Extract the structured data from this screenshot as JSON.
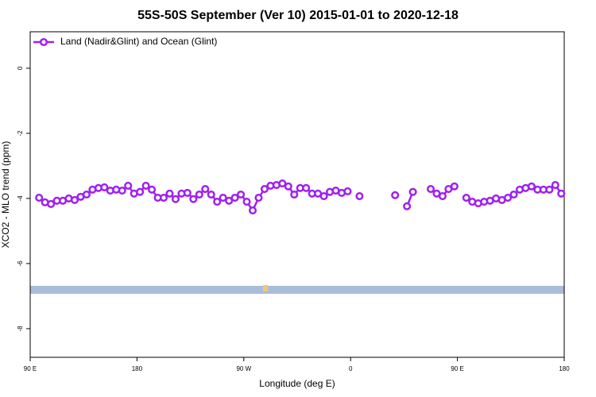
{
  "chart_data": {
    "type": "line",
    "title": "55S-50S September (Ver 10)   2015-01-01 to 2020-12-18",
    "x_label": "Longitude (deg E)",
    "y_label": "XCO2 - MLO trend (ppm)",
    "x": [
      97.5,
      102.5,
      107.5,
      112.5,
      117.5,
      122.5,
      127.5,
      132.5,
      137.5,
      142.5,
      147.5,
      152.5,
      157.5,
      162.5,
      167.5,
      172.5,
      177.5,
      182.5,
      187.5,
      192.5,
      197.5,
      202.5,
      207.5,
      212.5,
      217.5,
      222.5,
      227.5,
      232.5,
      237.5,
      242.5,
      247.5,
      252.5,
      257.5,
      262.5,
      267.5,
      272.5,
      277.5,
      282.5,
      287.5,
      292.5,
      297.5,
      302.5,
      307.5,
      312.5,
      317.5,
      322.5,
      327.5,
      332.5,
      337.5,
      342.5,
      347.5,
      352.5,
      357.5,
      362.5,
      367.5,
      372.5,
      377.5,
      382.5,
      387.5,
      392.5,
      397.5,
      402.5,
      407.5,
      412.5,
      417.5,
      422.5,
      427.5,
      432.5,
      437.5,
      442.5,
      447.5,
      452.5,
      457.5,
      462.5,
      467.5,
      472.5,
      477.5,
      482.5,
      487.5,
      492.5,
      497.5,
      502.5,
      507.5,
      512.5,
      517.5,
      522.5,
      527.5,
      532.5,
      537.5
    ],
    "series": [
      {
        "name": "Land (Nadir&Glint) and Ocean (Glint)",
        "color": "#a020f0",
        "values": [
          -3.98,
          -4.12,
          -4.17,
          -4.07,
          -4.07,
          -4.0,
          -4.05,
          -3.95,
          -3.88,
          -3.73,
          -3.68,
          -3.66,
          -3.76,
          -3.73,
          -3.76,
          -3.61,
          -3.85,
          -3.8,
          -3.61,
          -3.73,
          -3.98,
          -3.98,
          -3.85,
          -4.02,
          -3.85,
          -3.83,
          -4.02,
          -3.88,
          -3.71,
          -3.88,
          -4.1,
          -3.98,
          -4.07,
          -3.98,
          -3.88,
          -4.1,
          -4.37,
          -3.98,
          -3.71,
          -3.61,
          -3.59,
          -3.54,
          -3.63,
          -3.88,
          -3.68,
          -3.68,
          -3.85,
          -3.85,
          -3.93,
          -3.8,
          -3.76,
          -3.83,
          -3.78,
          null,
          -3.93,
          null,
          null,
          null,
          null,
          null,
          -3.9,
          null,
          -4.24,
          -3.8,
          null,
          null,
          -3.71,
          -3.85,
          -3.93,
          -3.71,
          -3.63,
          null,
          -3.98,
          -4.1,
          -4.15,
          -4.1,
          -4.07,
          -4.0,
          -4.05,
          -3.98,
          -3.88,
          -3.73,
          -3.68,
          -3.63,
          -3.73,
          -3.73,
          -3.73,
          -3.59,
          -3.85
        ]
      }
    ],
    "xlim": [
      90,
      540
    ],
    "xticks": [
      {
        "value": 90,
        "label": "90 E"
      },
      180,
      {
        "value": 270,
        "label": "90 W"
      },
      {
        "value": 360,
        "label": "0"
      },
      {
        "value": 450,
        "label": "90 E"
      },
      180
    ],
    "ylim": [
      -8.88,
      1.12
    ],
    "yticks": [
      0,
      -2,
      -4,
      -6,
      -8
    ],
    "legend": "top-left"
  }
}
